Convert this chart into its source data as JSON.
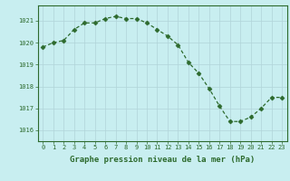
{
  "x": [
    0,
    1,
    2,
    3,
    4,
    5,
    6,
    7,
    8,
    9,
    10,
    11,
    12,
    13,
    14,
    15,
    16,
    17,
    18,
    19,
    20,
    21,
    22,
    23
  ],
  "y": [
    1019.8,
    1020.0,
    1020.1,
    1020.6,
    1020.9,
    1020.9,
    1021.1,
    1021.2,
    1021.1,
    1021.1,
    1020.9,
    1020.6,
    1020.3,
    1019.9,
    1019.1,
    1018.6,
    1017.9,
    1017.1,
    1016.4,
    1016.4,
    1016.6,
    1017.0,
    1017.5,
    1017.5
  ],
  "line_color": "#2d6a2d",
  "marker": "D",
  "marker_size": 2.5,
  "bg_color": "#c8eef0",
  "grid_color": "#b0d4d8",
  "ylabel_ticks": [
    1016,
    1017,
    1018,
    1019,
    1020,
    1021
  ],
  "xlabel_label": "Graphe pression niveau de la mer (hPa)",
  "xlim": [
    -0.5,
    23.5
  ],
  "ylim": [
    1015.5,
    1021.7
  ],
  "spine_color": "#2d6a2d",
  "label_color": "#2d6a2d",
  "tick_color": "#2d6a2d",
  "tick_fontsize": 5.0,
  "xlabel_fontsize": 6.5
}
